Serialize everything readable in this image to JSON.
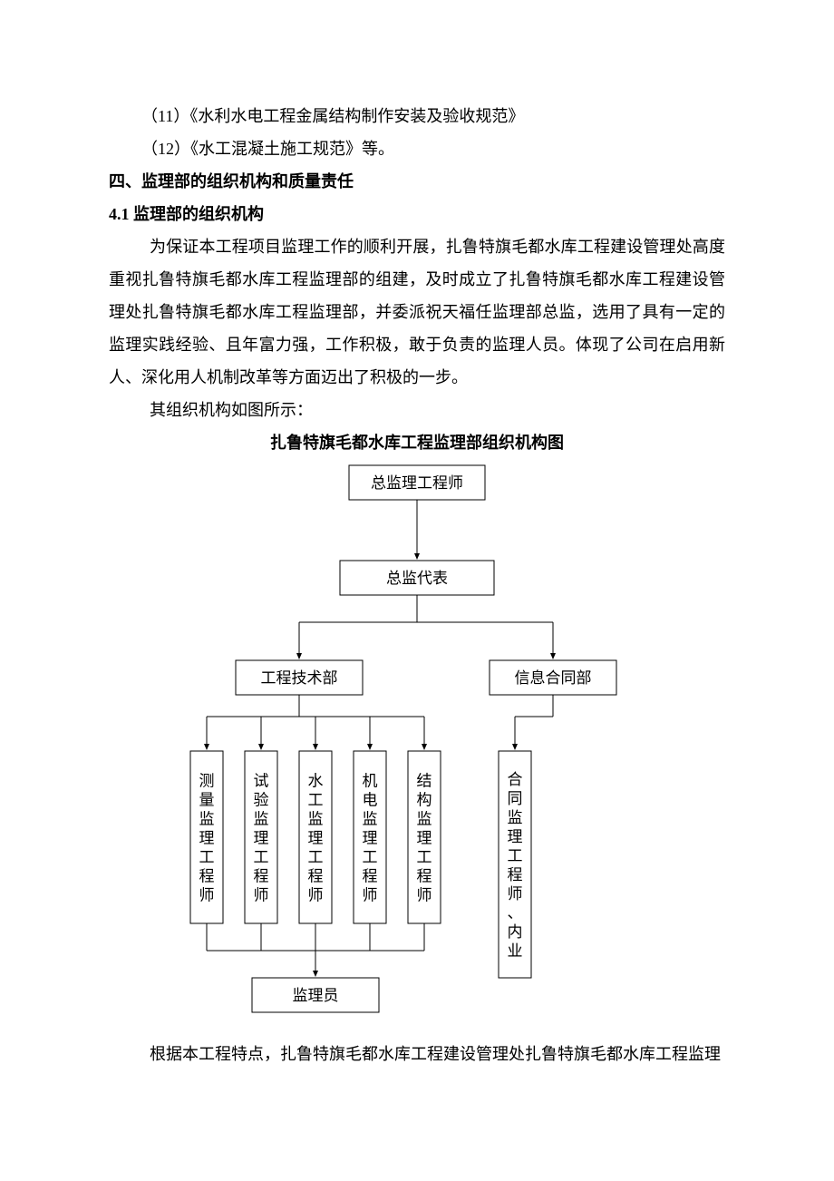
{
  "lines": {
    "item11": "（11）《水利水电工程金属结构制作安装及验收规范》",
    "item12": "（12）《水工混凝土施工规范》等。"
  },
  "heading4": "四、监理部的组织机构和质量责任",
  "heading41": "4.1 监理部的组织机构",
  "paragraph1": "为保证本工程项目监理工作的顺利开展，扎鲁特旗毛都水库工程建设管理处高度重视扎鲁特旗毛都水库工程监理部的组建，及时成立了扎鲁特旗毛都水库工程建设管理处扎鲁特旗毛都水库工程监理部，并委派祝天福任监理部总监，选用了具有一定的监理实践经验、且年富力强，工作积极，敢于负责的监理人员。体现了公司在启用新人、深化用人机制改革等方面迈出了积极的一步。",
  "paragraph2": "其组织机构如图所示：",
  "chart_title": "扎鲁特旗毛都水库工程监理部组织机构图",
  "flowchart": {
    "type": "org-tree",
    "background_color": "#ffffff",
    "box_border_color": "#000000",
    "box_fill": "#ffffff",
    "line_color": "#000000",
    "line_width": 1,
    "arrow_fill": "#000000",
    "font_size": 17,
    "nodes": {
      "root": "总监理工程师",
      "deputy": "总监代表",
      "dept_left": "工程技术部",
      "dept_right": "信息合同部",
      "leaf1": "测量监理工程师",
      "leaf2": "试验监理工程师",
      "leaf3": "水工监理工程师",
      "leaf4": "机电监理工程师",
      "leaf5": "结构监理工程师",
      "leaf6": "合同监理工程师、内业",
      "bottom": "监理员"
    }
  },
  "footer": "根据本工程特点，扎鲁特旗毛都水库工程建设管理处扎鲁特旗毛都水库工程监理"
}
